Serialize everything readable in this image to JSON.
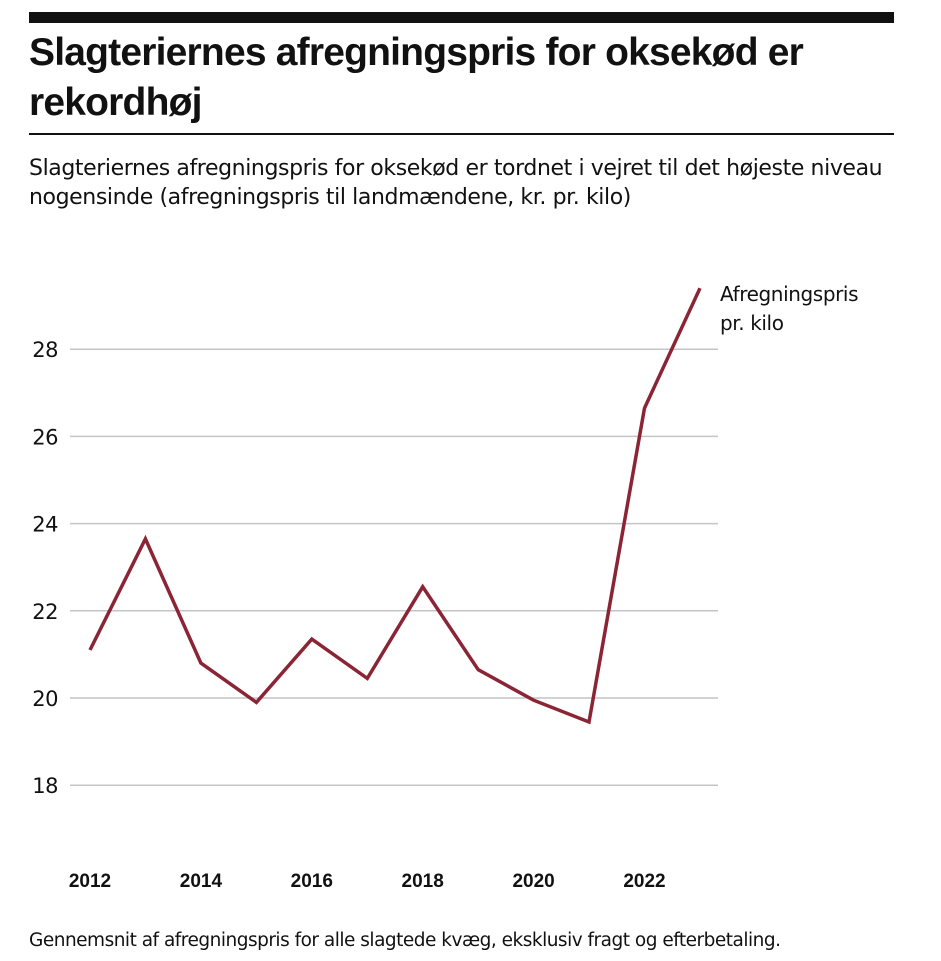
{
  "header": {
    "title": "Slagteriernes afregningspris for oksekød er rekordhøj",
    "subtitle": "Slagteriernes afregningspris for oksekød er tordnet i vejret til det højeste niveau nogensinde (afregningspris til landmændene, kr. pr. kilo)"
  },
  "footer": {
    "note": "Gennemsnit af afregningspris for alle slagtede kvæg, eksklusiv fragt og efterbetaling."
  },
  "chart_data": {
    "type": "line",
    "title": "Slagteriernes afregningspris for oksekød er rekordhøj",
    "xlabel": "",
    "ylabel": "kr. pr. kilo",
    "x": [
      2012,
      2013,
      2014,
      2015,
      2016,
      2017,
      2018,
      2019,
      2020,
      2021,
      2022,
      2023
    ],
    "series": [
      {
        "name": "Afregningspris pr. kilo",
        "label_lines": [
          "Afregningspris",
          "pr. kilo"
        ],
        "color": "#8b2535",
        "values": [
          21.1,
          23.65,
          20.8,
          19.9,
          21.35,
          20.45,
          22.55,
          20.65,
          19.95,
          19.45,
          26.65,
          29.4
        ]
      }
    ],
    "xticks": [
      "2012",
      "2014",
      "2016",
      "2018",
      "2020",
      "2022"
    ],
    "xtick_values": [
      2012,
      2014,
      2016,
      2018,
      2020,
      2022
    ],
    "yticks": [
      "18",
      "20",
      "22",
      "24",
      "26",
      "28"
    ],
    "ytick_values": [
      18,
      20,
      22,
      24,
      26,
      28
    ],
    "ylim": [
      18,
      29.4
    ],
    "xlim": [
      2012,
      2023
    ],
    "grid": "horizontal",
    "legend": "direct-label-right",
    "colors": {
      "line": "#8b2535",
      "grid": "#c4c4c4",
      "text": "#111111"
    }
  }
}
